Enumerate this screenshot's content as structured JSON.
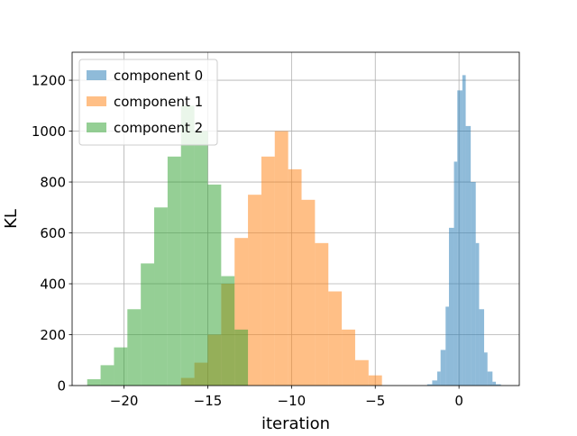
{
  "chart_data": {
    "type": "bar",
    "xlabel": "iteration",
    "ylabel": "KL",
    "xlim": [
      -23.1,
      3.6
    ],
    "ylim": [
      0,
      1310
    ],
    "grid": true,
    "legend_position": "top-left",
    "x_ticks": [
      -20,
      -15,
      -10,
      -5,
      0
    ],
    "x_tick_labels": [
      "−20",
      "−15",
      "−10",
      "−5",
      "0"
    ],
    "y_ticks": [
      0,
      200,
      400,
      600,
      800,
      1000,
      1200
    ],
    "y_tick_labels": [
      "0",
      "200",
      "400",
      "600",
      "800",
      "1000",
      "1200"
    ],
    "series": [
      {
        "name": "component 0",
        "color": "#1f77b4",
        "alpha": 0.5,
        "bin_edges": [
          -1.9,
          -1.6,
          -1.3,
          -1.1,
          -0.8,
          -0.6,
          -0.3,
          -0.1,
          0.2,
          0.4,
          0.7,
          1.0,
          1.2,
          1.5,
          1.7,
          2.0,
          2.2,
          2.5
        ],
        "counts": [
          5,
          20,
          55,
          140,
          310,
          620,
          880,
          1160,
          1220,
          1020,
          800,
          560,
          300,
          130,
          55,
          15,
          5
        ]
      },
      {
        "name": "component 1",
        "color": "#ff7f0e",
        "alpha": 0.5,
        "bin_edges": [
          -16.6,
          -15.8,
          -15.0,
          -14.2,
          -13.4,
          -12.6,
          -11.8,
          -11.0,
          -10.2,
          -9.4,
          -8.6,
          -7.8,
          -7.0,
          -6.2,
          -5.4,
          -4.6
        ],
        "counts": [
          30,
          90,
          200,
          400,
          580,
          750,
          900,
          1000,
          850,
          730,
          560,
          370,
          220,
          100,
          40
        ]
      },
      {
        "name": "component 2",
        "color": "#2ca02c",
        "alpha": 0.5,
        "bin_edges": [
          -22.2,
          -21.4,
          -20.6,
          -19.8,
          -19.0,
          -18.2,
          -17.4,
          -16.6,
          -15.8,
          -15.0,
          -14.2,
          -13.4,
          -12.6
        ],
        "counts": [
          25,
          80,
          150,
          300,
          480,
          700,
          900,
          1100,
          1000,
          790,
          430,
          220
        ]
      }
    ]
  }
}
